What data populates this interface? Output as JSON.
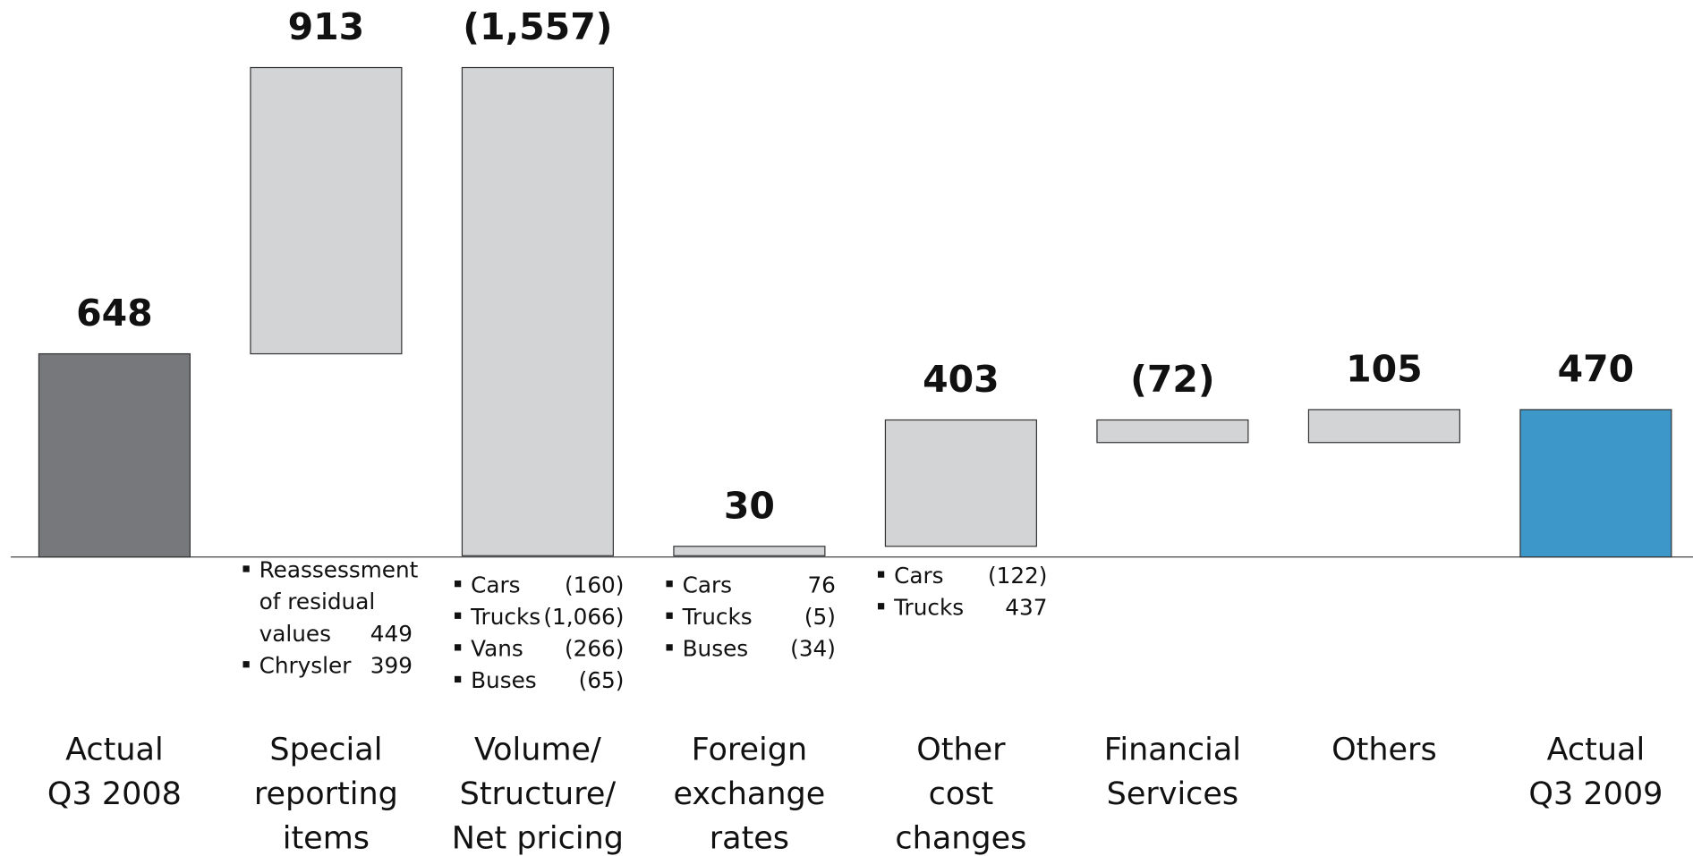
{
  "chart_data": {
    "type": "waterfall",
    "categories": [
      "Actual\nQ3 2008",
      "Special\nreporting\nitems",
      "Volume/\nStructure/\nNet pricing",
      "Foreign\nexchange\nrates",
      "Other\ncost\nchanges",
      "Financial\nServices",
      "Others",
      "Actual\nQ3 2009"
    ],
    "values": [
      648,
      913,
      -1557,
      30,
      403,
      -72,
      105,
      470
    ],
    "value_labels": [
      "648",
      "913",
      "(1,557)",
      "30",
      "403",
      "(72)",
      "105",
      "470"
    ],
    "kinds": [
      "total",
      "delta",
      "delta",
      "delta",
      "delta",
      "delta",
      "delta",
      "total"
    ],
    "colors": {
      "start": "#77787b",
      "delta": "#d3d4d6",
      "end": "#3d97c9"
    },
    "breakdowns": [
      null,
      [
        {
          "label": "Reassessment\nof residual\nvalues",
          "value": 449,
          "value_label": "449"
        },
        {
          "label": "Chrysler",
          "value": 399,
          "value_label": "399"
        }
      ],
      [
        {
          "label": "Cars",
          "value": -160,
          "value_label": "(160)"
        },
        {
          "label": "Trucks",
          "value": -1066,
          "value_label": "(1,066)"
        },
        {
          "label": "Vans",
          "value": -266,
          "value_label": "(266)"
        },
        {
          "label": "Buses",
          "value": -65,
          "value_label": "(65)"
        }
      ],
      [
        {
          "label": "Cars",
          "value": 76,
          "value_label": "76"
        },
        {
          "label": "Trucks",
          "value": -5,
          "value_label": "(5)"
        },
        {
          "label": "Buses",
          "value": -34,
          "value_label": "(34)"
        }
      ],
      [
        {
          "label": "Cars",
          "value": -122,
          "value_label": "(122)"
        },
        {
          "label": "Trucks",
          "value": 437,
          "value_label": "437"
        }
      ],
      null,
      null,
      null
    ]
  }
}
